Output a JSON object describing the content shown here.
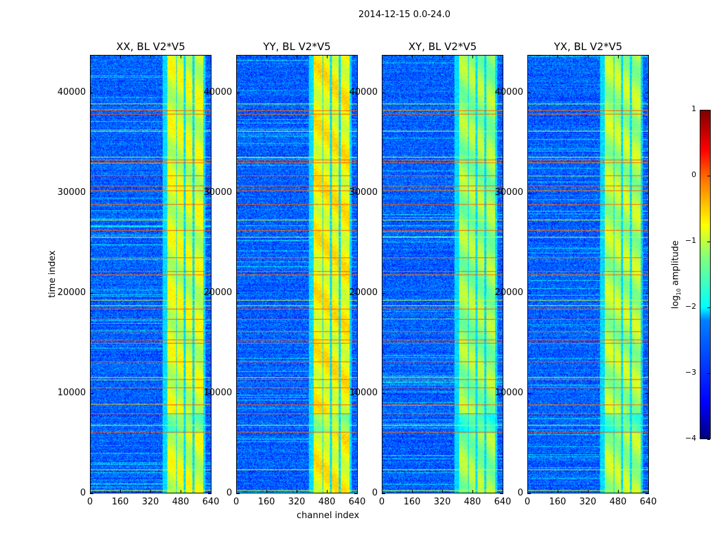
{
  "chart_data": {
    "type": "heatmap",
    "title": "2014-12-15 0.0-24.0",
    "xlabel": "channel index",
    "ylabel": "time index",
    "xlim": [
      0,
      640
    ],
    "ylim": [
      0,
      43770
    ],
    "xticks": [
      "0",
      "160",
      "320",
      "480",
      "640"
    ],
    "yticks": [
      "0",
      "10000",
      "20000",
      "30000",
      "40000"
    ],
    "panels": [
      {
        "title": "XX, BL V2*V5",
        "band_level": -1.1
      },
      {
        "title": "YY, BL V2*V5",
        "band_level": -0.9
      },
      {
        "title": "XY, BL V2*V5",
        "band_level": -1.4
      },
      {
        "title": "YX, BL V2*V5",
        "band_level": -1.3
      }
    ],
    "background_level": -2.9,
    "rfi_channel_bands": [
      [
        405,
        452
      ],
      [
        459,
        495
      ],
      [
        506,
        542
      ],
      [
        553,
        597
      ]
    ],
    "rfi_time_rows_strong": [
      38290,
      37945,
      33356,
      33080,
      31780,
      30750,
      30270,
      28900,
      26300,
      23560,
      22190,
      21850,
      18420,
      17400,
      16160,
      15340,
      15000,
      13150,
      11370,
      10550,
      8830,
      7945,
      6100
    ],
    "rfi_time_rows_weak": [
      38970,
      36230,
      33630,
      27330,
      25620,
      19300,
      18770,
      11570,
      6780,
      2330,
      300
    ],
    "colorbar": {
      "label": "log10 amplitude",
      "label_base": "log",
      "label_sub": "10",
      "label_rest": " amplitude",
      "range": [
        -4,
        1
      ],
      "ticks": [
        "1",
        "0",
        "−1",
        "−2",
        "−3",
        "−4"
      ],
      "colormap": "jet"
    }
  }
}
